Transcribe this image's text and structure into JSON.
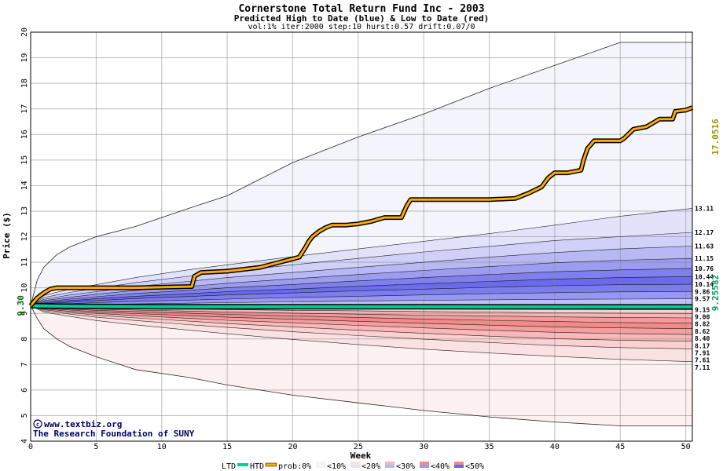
{
  "chart_data": {
    "type": "area",
    "title": "Cornerstone Total Return Fund Inc - 2003",
    "subtitle": "Predicted High to Date (blue) &  Low to Date (red)",
    "params": "vol:1% iter:2000 step:10 hurst:0.57 drift:0.07/0",
    "xlabel": "Week",
    "ylabel": "Price ($)",
    "xlim": [
      0,
      50.5
    ],
    "ylim": [
      4,
      20
    ],
    "x_ticks": [
      0,
      5,
      10,
      15,
      20,
      25,
      30,
      35,
      40,
      45,
      50
    ],
    "y_ticks": [
      4,
      5,
      6,
      7,
      8,
      9,
      10,
      11,
      12,
      13,
      14,
      15,
      16,
      17,
      18,
      19,
      20
    ],
    "grid": true,
    "start_price": 9.3,
    "start_label": "9.30",
    "htd_series": {
      "name": "HTD",
      "color": "#ffaa00",
      "final_label": "17.0516",
      "x": [
        0,
        0.5,
        1,
        1.5,
        2,
        3,
        5,
        8,
        12.3,
        12.5,
        13,
        15,
        17.5,
        19,
        20.5,
        21,
        21.2,
        21.5,
        22,
        22.5,
        23,
        24,
        25,
        26,
        27,
        28.3,
        28.7,
        29,
        29.5,
        30,
        35,
        37,
        38,
        39,
        39.5,
        40,
        41,
        42,
        42.2,
        42.5,
        43,
        44,
        45,
        45.3,
        46,
        47,
        48,
        49,
        49.2,
        50,
        50.5
      ],
      "y": [
        9.3,
        9.6,
        9.8,
        9.95,
        10.0,
        10.0,
        10.0,
        10.0,
        10.05,
        10.45,
        10.6,
        10.65,
        10.8,
        11.0,
        11.2,
        11.6,
        11.8,
        12.0,
        12.2,
        12.35,
        12.45,
        12.45,
        12.5,
        12.6,
        12.75,
        12.75,
        13.2,
        13.45,
        13.45,
        13.45,
        13.45,
        13.5,
        13.7,
        13.95,
        14.3,
        14.5,
        14.5,
        14.6,
        15.0,
        15.45,
        15.75,
        15.75,
        15.75,
        15.85,
        16.2,
        16.3,
        16.6,
        16.6,
        16.9,
        16.95,
        17.05
      ]
    },
    "ltd_series": {
      "name": "LTD",
      "color": "#00cc99",
      "final_label": "9.25582",
      "x": [
        0,
        1,
        3,
        6,
        10,
        20,
        30,
        40,
        50.5
      ],
      "y": [
        9.3,
        9.29,
        9.28,
        9.27,
        9.26,
        9.26,
        9.26,
        9.256,
        9.256
      ]
    },
    "band_weeks": [
      0,
      0.25,
      0.5,
      1,
      2,
      3,
      5,
      8,
      12,
      15,
      20,
      25,
      30,
      35,
      40,
      45,
      50.5
    ],
    "upper_bounds": [
      {
        "x": [
          0,
          0.5,
          1,
          2,
          3,
          5,
          8,
          12,
          15,
          20,
          25,
          30,
          35,
          40,
          45,
          50.5
        ],
        "y": [
          9.3,
          10.3,
          10.8,
          11.3,
          11.6,
          12.0,
          12.4,
          13.1,
          13.6,
          14.9,
          15.9,
          16.8,
          17.8,
          18.7,
          19.6,
          19.6
        ]
      },
      {
        "x": [
          0,
          1,
          3,
          5,
          8,
          12,
          15,
          20,
          25,
          30,
          35,
          40,
          45,
          50.5
        ],
        "y": [
          9.3,
          9.7,
          9.95,
          10.12,
          10.4,
          10.7,
          10.9,
          11.22,
          11.52,
          11.82,
          12.12,
          12.45,
          12.8,
          13.11
        ]
      },
      {
        "x": [
          0,
          1,
          3,
          5,
          8,
          12,
          15,
          20,
          25,
          30,
          35,
          40,
          45,
          50.5
        ],
        "y": [
          9.3,
          9.62,
          9.82,
          9.98,
          10.2,
          10.45,
          10.63,
          10.9,
          11.15,
          11.4,
          11.62,
          11.85,
          12.0,
          12.17
        ]
      },
      {
        "x": [
          0,
          1,
          3,
          5,
          8,
          12,
          15,
          20,
          25,
          30,
          35,
          40,
          45,
          50.5
        ],
        "y": [
          9.3,
          9.55,
          9.72,
          9.85,
          10.05,
          10.25,
          10.4,
          10.6,
          10.8,
          11.0,
          11.2,
          11.38,
          11.52,
          11.63
        ]
      },
      {
        "x": [
          0,
          1,
          3,
          5,
          8,
          12,
          15,
          20,
          25,
          30,
          35,
          40,
          45,
          50.5
        ],
        "y": [
          9.3,
          9.5,
          9.63,
          9.75,
          9.9,
          10.05,
          10.18,
          10.35,
          10.52,
          10.68,
          10.83,
          10.98,
          11.08,
          11.15
        ]
      },
      {
        "x": [
          0,
          1,
          3,
          5,
          8,
          12,
          15,
          20,
          25,
          30,
          35,
          40,
          45,
          50.5
        ],
        "y": [
          9.3,
          9.45,
          9.56,
          9.65,
          9.78,
          9.9,
          10.0,
          10.13,
          10.27,
          10.4,
          10.52,
          10.63,
          10.7,
          10.76
        ]
      },
      {
        "x": [
          0,
          1,
          3,
          5,
          8,
          12,
          15,
          20,
          25,
          30,
          35,
          40,
          45,
          50.5
        ],
        "y": [
          9.3,
          9.41,
          9.5,
          9.57,
          9.67,
          9.77,
          9.85,
          9.95,
          10.06,
          10.16,
          10.25,
          10.34,
          10.4,
          10.44
        ]
      },
      {
        "x": [
          0,
          1,
          3,
          5,
          8,
          12,
          15,
          20,
          25,
          30,
          35,
          40,
          45,
          50.5
        ],
        "y": [
          9.3,
          9.38,
          9.44,
          9.5,
          9.58,
          9.66,
          9.72,
          9.8,
          9.88,
          9.95,
          10.02,
          10.08,
          10.12,
          10.14
        ]
      },
      {
        "x": [
          0,
          1,
          3,
          5,
          8,
          12,
          15,
          20,
          25,
          30,
          35,
          40,
          45,
          50.5
        ],
        "y": [
          9.3,
          9.34,
          9.38,
          9.42,
          9.47,
          9.52,
          9.56,
          9.62,
          9.67,
          9.72,
          9.77,
          9.81,
          9.84,
          9.86
        ]
      },
      {
        "x": [
          0,
          1,
          3,
          5,
          8,
          12,
          15,
          20,
          25,
          30,
          35,
          40,
          45,
          50.5
        ],
        "y": [
          9.3,
          9.31,
          9.33,
          9.35,
          9.37,
          9.4,
          9.42,
          9.45,
          9.48,
          9.51,
          9.53,
          9.55,
          9.56,
          9.57
        ]
      }
    ],
    "lower_bounds": [
      {
        "x": [
          0,
          0.5,
          1,
          2,
          3,
          5,
          8,
          12,
          15,
          20,
          25,
          30,
          35,
          40,
          45,
          50.5
        ],
        "y": [
          9.3,
          8.8,
          8.4,
          8.0,
          7.7,
          7.3,
          6.8,
          6.5,
          6.2,
          5.8,
          5.5,
          5.2,
          4.95,
          4.75,
          4.6,
          4.6
        ]
      },
      {
        "x": [
          0,
          1,
          3,
          5,
          8,
          12,
          15,
          20,
          25,
          30,
          35,
          40,
          45,
          50.5
        ],
        "y": [
          9.3,
          9.05,
          8.88,
          8.72,
          8.55,
          8.35,
          8.2,
          7.98,
          7.78,
          7.6,
          7.45,
          7.32,
          7.2,
          7.11
        ]
      },
      {
        "x": [
          0,
          1,
          3,
          5,
          8,
          12,
          15,
          20,
          25,
          30,
          35,
          40,
          45,
          50.5
        ],
        "y": [
          9.3,
          9.1,
          8.97,
          8.85,
          8.72,
          8.56,
          8.45,
          8.28,
          8.13,
          7.99,
          7.86,
          7.74,
          7.66,
          7.61
        ]
      },
      {
        "x": [
          0,
          1,
          3,
          5,
          8,
          12,
          15,
          20,
          25,
          30,
          35,
          40,
          45,
          50.5
        ],
        "y": [
          9.3,
          9.14,
          9.03,
          8.93,
          8.82,
          8.7,
          8.6,
          8.47,
          8.34,
          8.22,
          8.11,
          8.01,
          7.95,
          7.91
        ]
      },
      {
        "x": [
          0,
          1,
          3,
          5,
          8,
          12,
          15,
          20,
          25,
          30,
          35,
          40,
          45,
          50.5
        ],
        "y": [
          9.3,
          9.17,
          9.08,
          9.0,
          8.91,
          8.81,
          8.73,
          8.63,
          8.53,
          8.43,
          8.34,
          8.26,
          8.21,
          8.17
        ]
      },
      {
        "x": [
          0,
          1,
          3,
          5,
          8,
          12,
          15,
          20,
          25,
          30,
          35,
          40,
          45,
          50.5
        ],
        "y": [
          9.3,
          9.2,
          9.13,
          9.06,
          8.99,
          8.91,
          8.85,
          8.77,
          8.69,
          8.61,
          8.54,
          8.47,
          8.43,
          8.4
        ]
      },
      {
        "x": [
          0,
          1,
          3,
          5,
          8,
          12,
          15,
          20,
          25,
          30,
          35,
          40,
          45,
          50.5
        ],
        "y": [
          9.3,
          9.23,
          9.17,
          9.12,
          9.07,
          9.01,
          8.96,
          8.9,
          8.84,
          8.78,
          8.73,
          8.68,
          8.64,
          8.62
        ]
      },
      {
        "x": [
          0,
          1,
          3,
          5,
          8,
          12,
          15,
          20,
          25,
          30,
          35,
          40,
          45,
          50.5
        ],
        "y": [
          9.3,
          9.25,
          9.21,
          9.17,
          9.13,
          9.09,
          9.05,
          9.01,
          8.97,
          8.93,
          8.9,
          8.86,
          8.84,
          8.82
        ]
      },
      {
        "x": [
          0,
          1,
          3,
          5,
          8,
          12,
          15,
          20,
          25,
          30,
          35,
          40,
          45,
          50.5
        ],
        "y": [
          9.3,
          9.27,
          9.25,
          9.22,
          9.2,
          9.17,
          9.15,
          9.12,
          9.1,
          9.07,
          9.05,
          9.02,
          9.01,
          9.0
        ]
      },
      {
        "x": [
          0,
          1,
          3,
          5,
          8,
          12,
          15,
          20,
          25,
          30,
          35,
          40,
          45,
          50.5
        ],
        "y": [
          9.3,
          9.29,
          9.28,
          9.27,
          9.26,
          9.24,
          9.23,
          9.21,
          9.2,
          9.18,
          9.17,
          9.16,
          9.15,
          9.15
        ]
      }
    ],
    "upper_fills": [
      "#f4f4fc",
      "#e2e2fa",
      "#d0d0f8",
      "#b8b8f4",
      "#9c9cf0",
      "#8080ec",
      "#6a6aea",
      "#7c7cee",
      "#9898f2",
      "#c0c0f8"
    ],
    "lower_fills": [
      "#fdf0f0",
      "#fbe2e2",
      "#fad0d0",
      "#f8b8b8",
      "#f49e9e",
      "#f28a8a",
      "#f49a9a",
      "#f6b4b4",
      "#f8d0d0",
      "#fbe6e6"
    ],
    "right_labels": [
      "13.11",
      "12.17",
      "11.63",
      "11.15",
      "10.76",
      "10.44",
      "10.14",
      "9.86",
      "9.57",
      "9.15",
      "9.00",
      "8.82",
      "8.62",
      "8.40",
      "8.17",
      "7.91",
      "7.61",
      "7.11"
    ],
    "right_label_values": [
      13.11,
      12.17,
      11.63,
      11.15,
      10.76,
      10.44,
      10.14,
      9.86,
      9.57,
      9.15,
      9.0,
      8.82,
      8.62,
      8.4,
      8.17,
      7.91,
      7.61,
      7.11
    ],
    "legend": {
      "ltd": "LTD",
      "htd": "HTD",
      "prob": "prob:0%",
      "items": [
        "<10%",
        "<20%",
        "<30%",
        "<40%",
        "<50%"
      ],
      "swatch_colors": [
        [
          "#fdf0f0",
          "#f4f4fc"
        ],
        [
          "#fbe2e2",
          "#e2e2fa"
        ],
        [
          "#f8b8b8",
          "#b8b8f4"
        ],
        [
          "#f28a8a",
          "#9c9cf0"
        ],
        [
          "#f28a8a",
          "#6a6aea"
        ]
      ]
    },
    "watermark": {
      "line1": "www.textbiz.org",
      "line2": "The Research Foundation of SUNY"
    }
  }
}
